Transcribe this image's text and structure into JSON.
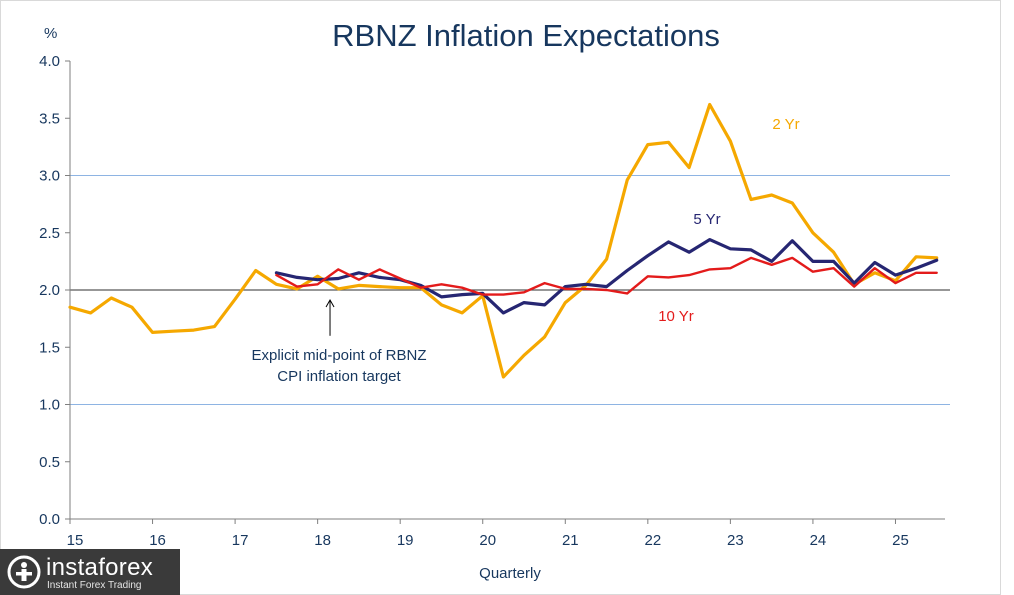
{
  "chart_data": {
    "type": "line",
    "title": "RBNZ Inflation Expectations",
    "ylabel": "%",
    "xlabel": "Quarterly",
    "ylim": [
      0,
      4
    ],
    "yticks": [
      "0.0",
      "0.5",
      "1.0",
      "1.5",
      "2.0",
      "2.5",
      "3.0",
      "3.5",
      "4.0"
    ],
    "xlim": [
      15,
      25.6
    ],
    "xticks": [
      "15",
      "16",
      "17",
      "18",
      "19",
      "20",
      "21",
      "22",
      "23",
      "24",
      "25"
    ],
    "reference_lines": [
      1.0,
      2.0,
      3.0
    ],
    "reference_colors": {
      "band": "#8eb4e3",
      "target": "#595959"
    },
    "series": [
      {
        "name": "2 Yr",
        "color": "#f5a800",
        "x": [
          15.0,
          15.25,
          15.5,
          15.75,
          16.0,
          16.25,
          16.5,
          16.75,
          17.0,
          17.25,
          17.5,
          17.75,
          18.0,
          18.25,
          18.5,
          18.75,
          19.0,
          19.25,
          19.5,
          19.75,
          20.0,
          20.25,
          20.5,
          20.75,
          21.0,
          21.25,
          21.5,
          21.75,
          22.0,
          22.25,
          22.5,
          22.75,
          23.0,
          23.25,
          23.5,
          23.75,
          24.0,
          24.25,
          24.5,
          24.75,
          25.0,
          25.25,
          25.5
        ],
        "values": [
          1.85,
          1.8,
          1.93,
          1.85,
          1.63,
          1.64,
          1.65,
          1.68,
          1.92,
          2.17,
          2.05,
          2.01,
          2.12,
          2.01,
          2.04,
          2.03,
          2.02,
          2.02,
          1.87,
          1.8,
          1.95,
          1.24,
          1.43,
          1.59,
          1.89,
          2.04,
          2.27,
          2.96,
          3.27,
          3.29,
          3.07,
          3.62,
          3.3,
          2.79,
          2.83,
          2.76,
          2.5,
          2.33,
          2.05,
          2.15,
          2.08,
          2.29,
          2.28
        ]
      },
      {
        "name": "5 Yr",
        "color": "#262672",
        "x": [
          17.5,
          17.75,
          18.0,
          18.25,
          18.5,
          18.75,
          19.0,
          19.25,
          19.5,
          19.75,
          20.0,
          20.25,
          20.5,
          20.75,
          21.0,
          21.25,
          21.5,
          21.75,
          22.0,
          22.25,
          22.5,
          22.75,
          23.0,
          23.25,
          23.5,
          23.75,
          24.0,
          24.25,
          24.5,
          24.75,
          25.0,
          25.25,
          25.5
        ],
        "values": [
          2.15,
          2.11,
          2.09,
          2.1,
          2.15,
          2.11,
          2.09,
          2.04,
          1.94,
          1.96,
          1.97,
          1.8,
          1.89,
          1.87,
          2.03,
          2.05,
          2.03,
          2.17,
          2.3,
          2.42,
          2.33,
          2.44,
          2.36,
          2.35,
          2.25,
          2.43,
          2.25,
          2.25,
          2.06,
          2.24,
          2.13,
          2.19,
          2.26
        ]
      },
      {
        "name": "10 Yr",
        "color": "#e31b1b",
        "x": [
          17.5,
          17.75,
          18.0,
          18.25,
          18.5,
          18.75,
          19.0,
          19.25,
          19.5,
          19.75,
          20.0,
          20.25,
          20.5,
          20.75,
          21.0,
          21.25,
          21.5,
          21.75,
          22.0,
          22.25,
          22.5,
          22.75,
          23.0,
          23.25,
          23.5,
          23.75,
          24.0,
          24.25,
          24.5,
          24.75,
          25.0,
          25.25,
          25.5
        ],
        "values": [
          2.13,
          2.03,
          2.05,
          2.18,
          2.09,
          2.18,
          2.1,
          2.02,
          2.05,
          2.02,
          1.96,
          1.96,
          1.98,
          2.06,
          2.01,
          2.01,
          2.0,
          1.97,
          2.12,
          2.11,
          2.13,
          2.18,
          2.19,
          2.28,
          2.22,
          2.28,
          2.16,
          2.19,
          2.03,
          2.19,
          2.06,
          2.15,
          2.15
        ]
      }
    ],
    "annotation": {
      "line1": "Explicit mid-point of RBNZ",
      "line2": "CPI inflation target",
      "x": 18.15,
      "arrow_to": 2.0,
      "arrow_from": 1.6
    }
  },
  "watermark": {
    "name": "instaforex",
    "tagline": "Instant Forex Trading"
  }
}
